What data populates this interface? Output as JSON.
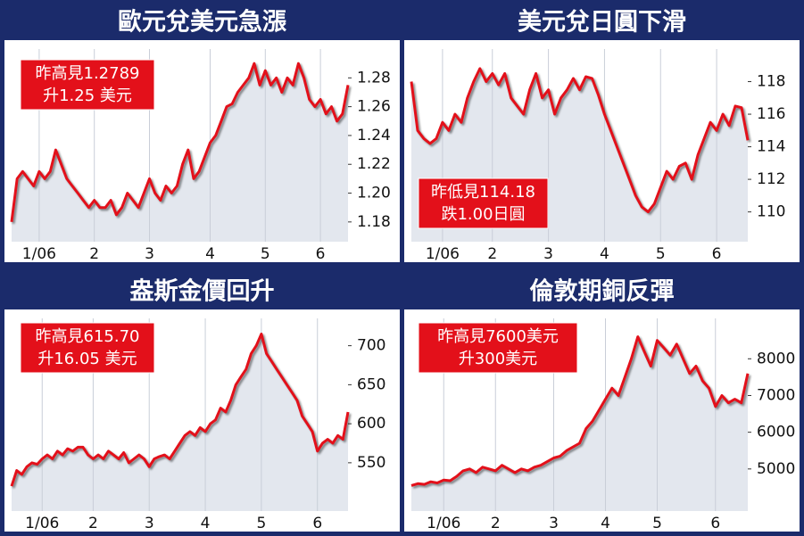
{
  "chart_data": [
    {
      "type": "line",
      "title": "歐元兌美元急漲",
      "annotation": [
        "昨高見1.2789",
        "升1.25 美元"
      ],
      "values": [
        1.18,
        1.21,
        1.215,
        1.21,
        1.205,
        1.215,
        1.21,
        1.215,
        1.23,
        1.22,
        1.21,
        1.205,
        1.2,
        1.195,
        1.19,
        1.195,
        1.19,
        1.19,
        1.195,
        1.185,
        1.19,
        1.2,
        1.195,
        1.19,
        1.2,
        1.21,
        1.2,
        1.195,
        1.205,
        1.2,
        1.205,
        1.22,
        1.23,
        1.21,
        1.215,
        1.225,
        1.235,
        1.24,
        1.25,
        1.26,
        1.262,
        1.27,
        1.275,
        1.28,
        1.29,
        1.275,
        1.285,
        1.275,
        1.28,
        1.27,
        1.28,
        1.275,
        1.29,
        1.28,
        1.265,
        1.26,
        1.265,
        1.255,
        1.26,
        1.25,
        1.255,
        1.275
      ],
      "color": "#e3101a",
      "xlim": [
        0,
        61
      ],
      "xticks": [
        {
          "value": 5,
          "label": "1/06"
        },
        {
          "value": 15,
          "label": "2"
        },
        {
          "value": 25,
          "label": "3"
        },
        {
          "value": 36,
          "label": "4"
        },
        {
          "value": 46,
          "label": "5"
        },
        {
          "value": 56,
          "label": "6"
        }
      ],
      "ylim": [
        1.17,
        1.3
      ],
      "yticks": [
        1.18,
        {
          "value": 1.2,
          "label": "1.20"
        },
        1.22,
        1.24,
        1.26,
        1.28
      ],
      "grid": true
    },
    {
      "type": "line",
      "title": "美元兌日圓下滑",
      "annotation": [
        "昨低見114.18",
        "跌1.00日圓"
      ],
      "values": [
        118,
        115,
        114.5,
        114.2,
        114.5,
        115.5,
        115,
        116,
        115.5,
        117,
        118,
        118.8,
        118,
        118.5,
        117.8,
        118.5,
        117,
        116.5,
        116,
        117.5,
        118.5,
        117,
        117.5,
        116,
        117,
        117.5,
        118.2,
        117.5,
        118.3,
        118.2,
        117.2,
        116,
        115,
        114,
        113,
        112,
        111,
        110.3,
        110,
        110.5,
        111.5,
        112.5,
        112,
        112.8,
        113,
        112,
        113.5,
        114.5,
        115.5,
        115,
        116,
        115.3,
        116.5,
        116.4,
        114.4
      ],
      "color": "#e3101a",
      "xlim": [
        0,
        54
      ],
      "xticks": [
        {
          "value": 5,
          "label": "1/06"
        },
        {
          "value": 13,
          "label": "2"
        },
        {
          "value": 22,
          "label": "3"
        },
        {
          "value": 31,
          "label": "4"
        },
        {
          "value": 40,
          "label": "5"
        },
        {
          "value": 49,
          "label": "6"
        }
      ],
      "ylim": [
        108.5,
        120
      ],
      "yticks": [
        110,
        112,
        114,
        116,
        118
      ],
      "grid": true
    },
    {
      "type": "line",
      "title": "盎斯金價回升",
      "annotation": [
        "昨高見615.70",
        "升16.05 美元"
      ],
      "values": [
        520,
        540,
        535,
        545,
        550,
        548,
        555,
        560,
        555,
        565,
        560,
        568,
        565,
        570,
        570,
        560,
        555,
        560,
        555,
        565,
        560,
        555,
        563,
        550,
        555,
        560,
        555,
        545,
        555,
        558,
        560,
        555,
        565,
        575,
        585,
        590,
        585,
        595,
        590,
        600,
        605,
        620,
        615,
        630,
        650,
        660,
        670,
        690,
        700,
        715,
        690,
        680,
        670,
        660,
        650,
        640,
        630,
        610,
        600,
        590,
        565,
        575,
        580,
        575,
        585,
        580,
        615
      ],
      "color": "#e3101a",
      "xlim": [
        0,
        66
      ],
      "xticks": [
        {
          "value": 6,
          "label": "1/06"
        },
        {
          "value": 16,
          "label": "2"
        },
        {
          "value": 27,
          "label": "3"
        },
        {
          "value": 38,
          "label": "4"
        },
        {
          "value": 49,
          "label": "5"
        },
        {
          "value": 60,
          "label": "6"
        }
      ],
      "ylim": [
        495,
        735
      ],
      "yticks": [
        550,
        600,
        650,
        700
      ],
      "grid": true
    },
    {
      "type": "line",
      "title": "倫敦期銅反彈",
      "annotation": [
        "昨高見7600美元",
        "升300美元"
      ],
      "values": [
        4550,
        4600,
        4580,
        4650,
        4620,
        4700,
        4680,
        4800,
        4950,
        5000,
        4900,
        5050,
        5000,
        4950,
        5100,
        5000,
        4900,
        5000,
        4950,
        5050,
        5100,
        5200,
        5300,
        5350,
        5500,
        5600,
        5700,
        6100,
        6300,
        6600,
        6900,
        7200,
        7000,
        7500,
        8000,
        8600,
        8200,
        7800,
        8500,
        8300,
        8100,
        8400,
        8000,
        7600,
        7800,
        7400,
        7200,
        6700,
        7000,
        6800,
        6900,
        6800,
        7600
      ],
      "color": "#e3101a",
      "xlim": [
        0,
        52
      ],
      "xticks": [
        {
          "value": 5,
          "label": "1/06"
        },
        {
          "value": 13,
          "label": "2"
        },
        {
          "value": 22,
          "label": "3"
        },
        {
          "value": 30,
          "label": "4"
        },
        {
          "value": 38,
          "label": "5"
        },
        {
          "value": 47,
          "label": "6"
        }
      ],
      "ylim": [
        4000,
        9100
      ],
      "yticks": [
        5000,
        6000,
        7000,
        8000
      ],
      "grid": true
    }
  ]
}
